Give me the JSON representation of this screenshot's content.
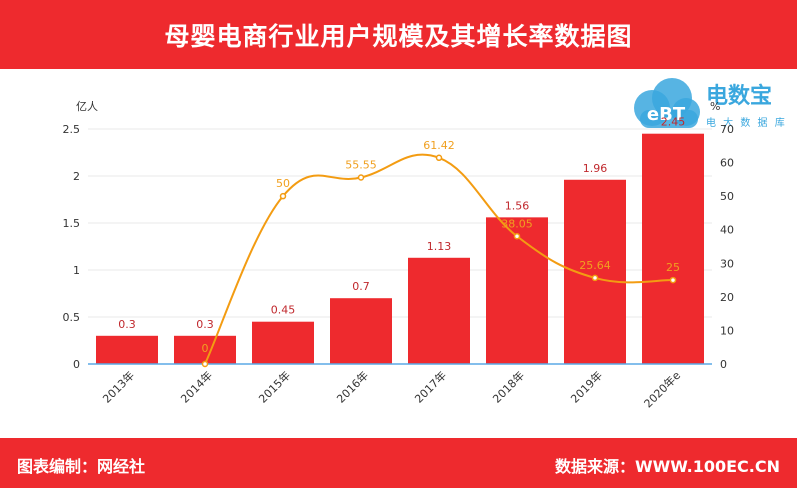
{
  "header": {
    "title": "母婴电商行业用户规模及其增长率数据图"
  },
  "footer": {
    "left": "图表编制：网经社",
    "right": "数据来源：WWW.100EC.CN"
  },
  "logo": {
    "name": "电数宝",
    "subtitle": "电 大 数 据 库",
    "mark": "eBT"
  },
  "colors": {
    "header_bg": "#ee2a2e",
    "bar": "#ee2a2e",
    "line": "#f39c12",
    "bar_label": "#c0282d",
    "line_label": "#f0a020",
    "logo": "#3aa7de"
  },
  "chart_data": {
    "type": "bar",
    "title": "",
    "categories": [
      "2013年",
      "2014年",
      "2015年",
      "2016年",
      "2017年",
      "2018年",
      "2019年",
      "2020年e"
    ],
    "series": [
      {
        "type": "bar",
        "axis": "left",
        "values": [
          0.3,
          0.3,
          0.45,
          0.7,
          1.13,
          1.56,
          1.96,
          2.45
        ]
      },
      {
        "type": "line",
        "axis": "right",
        "values": [
          null,
          0,
          50,
          55.55,
          61.42,
          38.05,
          25.64,
          25
        ]
      }
    ],
    "left_axis": {
      "unit_label": "亿人",
      "min": 0,
      "max": 2.5,
      "ticks": [
        "0",
        "0.5",
        "1",
        "1.5",
        "2",
        "2.5"
      ]
    },
    "right_axis": {
      "unit_label": "%",
      "min": 0,
      "max": 70,
      "ticks": [
        "0",
        "10",
        "20",
        "30",
        "40",
        "50",
        "60",
        "70"
      ]
    },
    "grid": true,
    "legend": "none"
  }
}
